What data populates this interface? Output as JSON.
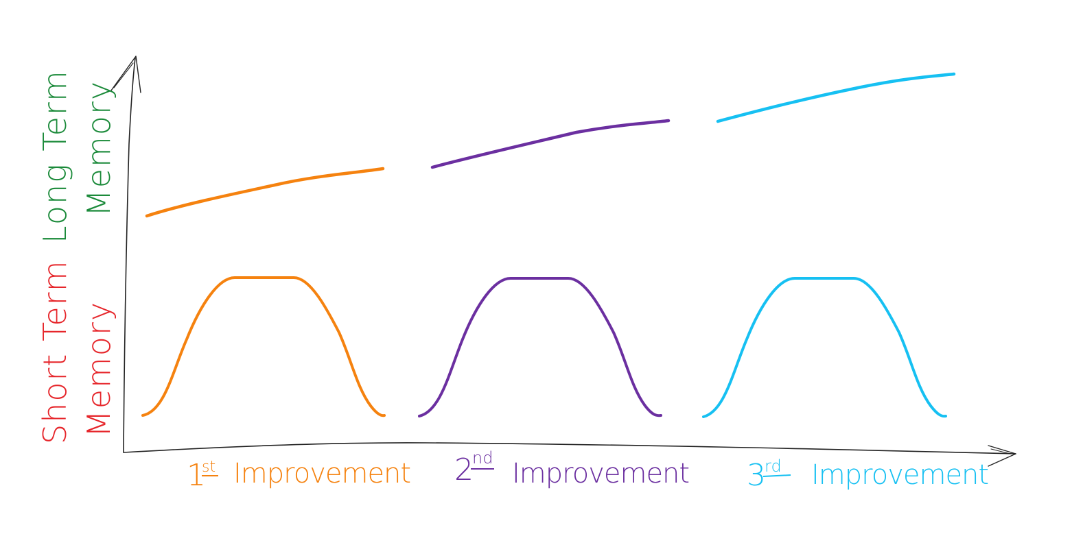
{
  "labels": {
    "long_term": {
      "line1": "Long Term",
      "line2": "Memory",
      "color": "#1b8a3a"
    },
    "short_term": {
      "line1": "Short Term",
      "line2": "Memory",
      "color": "#e6262b"
    }
  },
  "improvements": [
    {
      "number": "1",
      "suffix": "st",
      "word": "Improvement",
      "color": "#f5820f"
    },
    {
      "number": "2",
      "suffix": "nd",
      "word": "Improvement",
      "color": "#6b2fa0"
    },
    {
      "number": "3",
      "suffix": "rd",
      "word": "Improvement",
      "color": "#16c0f2"
    }
  ],
  "axis_color": "#222222"
}
